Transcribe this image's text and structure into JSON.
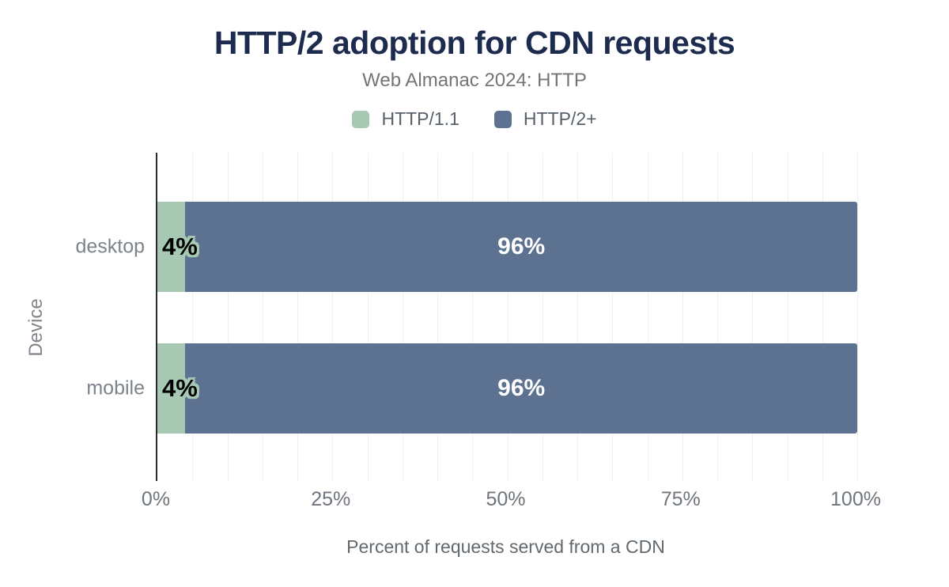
{
  "header": {
    "title": "HTTP/2 adoption for CDN requests",
    "subtitle": "Web Almanac 2024: HTTP"
  },
  "chart_data": {
    "type": "bar",
    "orientation": "horizontal-stacked",
    "title": "HTTP/2 adoption for CDN requests",
    "subtitle": "Web Almanac 2024: HTTP",
    "categories": [
      "desktop",
      "mobile"
    ],
    "series": [
      {
        "name": "HTTP/1.1",
        "color": "#a7c9b4",
        "values": [
          4,
          4
        ]
      },
      {
        "name": "HTTP/2+",
        "color": "#5d7190",
        "values": [
          96,
          96
        ]
      }
    ],
    "value_label_format": "percent",
    "xlabel": "Percent of requests served from a CDN",
    "ylabel": "Device",
    "x_ticks": [
      "0%",
      "25%",
      "50%",
      "75%",
      "100%"
    ],
    "xlim": [
      0,
      100
    ],
    "grid": "vertical-minor-every-5pct",
    "legend_position": "top",
    "colors": {
      "title": "#1d2b4f",
      "subtitle": "#757575",
      "axis_line": "#2b2b2b",
      "gridline": "#f1f1f1",
      "tick_text": "#6e757d"
    }
  }
}
